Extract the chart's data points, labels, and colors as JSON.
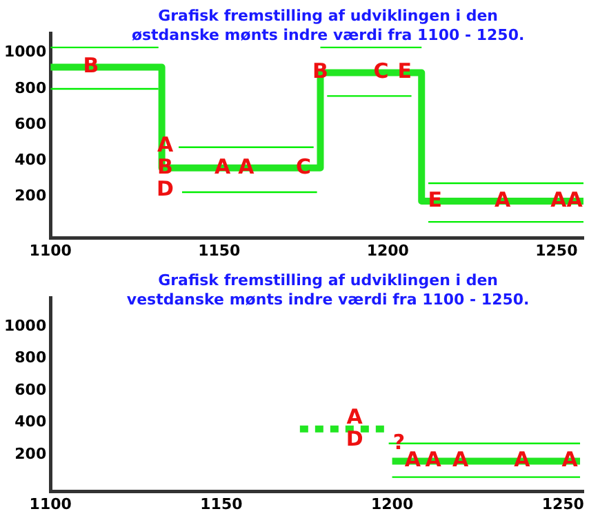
{
  "chart_data": [
    {
      "type": "line",
      "title": "Grafisk fremstilling af udviklingen i den\nøstdanske mønts indre værdi fra 1100 - 1250.",
      "xlim": [
        1100,
        1258
      ],
      "xticks": [
        1100,
        1150,
        1200,
        1250
      ],
      "ylim": [
        -30,
        1110
      ],
      "yticks": [
        200,
        400,
        600,
        800,
        1000
      ],
      "grid": false,
      "legend": false,
      "marker": "none",
      "series": [
        {
          "type": "step",
          "color": "#22e622",
          "x": [
            1100,
            1133,
            1180,
            1210,
            1258
          ],
          "values": [
            920,
            360,
            890,
            175,
            175
          ]
        },
        {
          "color": "#00ee00",
          "x": [
            1100,
            1132
          ],
          "values": [
            1030,
            1030
          ]
        },
        {
          "color": "#00ee00",
          "x": [
            1100,
            1132
          ],
          "values": [
            800,
            800
          ]
        },
        {
          "color": "#00ee00",
          "x": [
            1138,
            1178
          ],
          "values": [
            475,
            475
          ]
        },
        {
          "color": "#00ee00",
          "x": [
            1139,
            1179
          ],
          "values": [
            225,
            225
          ]
        },
        {
          "color": "#00ee00",
          "x": [
            1180,
            1210
          ],
          "values": [
            1030,
            1030
          ]
        },
        {
          "color": "#00ee00",
          "x": [
            1182,
            1207
          ],
          "values": [
            760,
            760
          ]
        },
        {
          "color": "#00ee00",
          "x": [
            1212,
            1258
          ],
          "values": [
            275,
            275
          ]
        },
        {
          "color": "#00ee00",
          "x": [
            1212,
            1258
          ],
          "values": [
            60,
            60
          ]
        }
      ],
      "annotations": [
        {
          "text": "B",
          "x": 1112,
          "y": 920
        },
        {
          "text": "A\nB\nD",
          "x": 1134,
          "y": 360
        },
        {
          "text": "A",
          "x": 1151,
          "y": 360
        },
        {
          "text": "A",
          "x": 1158,
          "y": 360
        },
        {
          "text": "C",
          "x": 1175,
          "y": 360
        },
        {
          "text": "B",
          "x": 1180,
          "y": 890
        },
        {
          "text": "C",
          "x": 1198,
          "y": 890
        },
        {
          "text": "E",
          "x": 1205,
          "y": 890
        },
        {
          "text": "E",
          "x": 1214,
          "y": 175
        },
        {
          "text": "A",
          "x": 1234,
          "y": 175
        },
        {
          "text": "AA",
          "x": 1253,
          "y": 175
        }
      ]
    },
    {
      "type": "line",
      "title": "Grafisk fremstilling af udviklingen i den\nvestdanske mønts indre værdi fra 1100 - 1250.",
      "xlim": [
        1100,
        1256
      ],
      "xticks": [
        1100,
        1150,
        1200,
        1250
      ],
      "ylim": [
        -30,
        1180
      ],
      "yticks": [
        200,
        400,
        600,
        800,
        1000
      ],
      "grid": false,
      "legend": false,
      "marker": "none",
      "series": [
        {
          "type": "step",
          "color": "#22e622",
          "line_style": "dashed",
          "x": [
            1173,
            1198
          ],
          "values": [
            360,
            360
          ]
        },
        {
          "type": "step",
          "color": "#22e622",
          "x": [
            1200,
            1255
          ],
          "values": [
            160,
            160
          ]
        },
        {
          "color": "#00ee00",
          "x": [
            1199,
            1255
          ],
          "values": [
            270,
            270
          ]
        },
        {
          "color": "#00ee00",
          "x": [
            1200,
            1255
          ],
          "values": [
            60,
            60
          ]
        }
      ],
      "annotations": [
        {
          "text": "A\nD",
          "x": 1189,
          "y": 360
        },
        {
          "text": "?",
          "x": 1202,
          "y": 270
        },
        {
          "text": "A",
          "x": 1206,
          "y": 160
        },
        {
          "text": "A",
          "x": 1212,
          "y": 160
        },
        {
          "text": "A",
          "x": 1220,
          "y": 160
        },
        {
          "text": "A",
          "x": 1238,
          "y": 160
        },
        {
          "text": "A",
          "x": 1252,
          "y": 160
        }
      ]
    }
  ]
}
